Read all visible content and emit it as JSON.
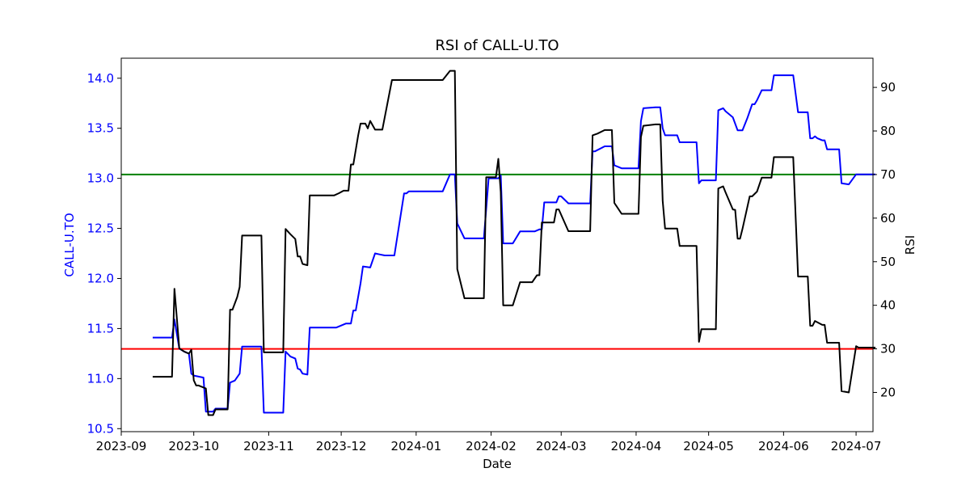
{
  "chart_data": {
    "type": "line",
    "title": "RSI of CALL-U.TO",
    "xlabel": "Date",
    "ylabel_left": "CALL-U.TO",
    "ylabel_right": "RSI",
    "ylim_left": [
      10.47,
      14.2
    ],
    "ylim_right": [
      11.0,
      96.7
    ],
    "xlim": [
      "2023-09-01",
      "2024-07-08"
    ],
    "x_ticks": [
      "2023-09",
      "2023-10",
      "2023-11",
      "2023-12",
      "2024-01",
      "2024-02",
      "2024-03",
      "2024-04",
      "2024-05",
      "2024-06",
      "2024-07"
    ],
    "y_ticks_left": [
      "10.5",
      "11.0",
      "11.5",
      "12.0",
      "12.5",
      "13.0",
      "13.5",
      "14.0"
    ],
    "y_ticks_right": [
      "20",
      "30",
      "40",
      "50",
      "60",
      "70",
      "80",
      "90"
    ],
    "hlines": [
      {
        "axis": "right",
        "value": 70,
        "color": "#008000"
      },
      {
        "axis": "right",
        "value": 30,
        "color": "#ff0000"
      }
    ],
    "series": [
      {
        "axis": "left",
        "color": "#0000ff",
        "points": [
          [
            "2023-09-14",
            11.41
          ],
          [
            "2023-09-22",
            11.41
          ],
          [
            "2023-09-23",
            11.59
          ],
          [
            "2023-09-25",
            11.3
          ],
          [
            "2023-09-27",
            11.27
          ],
          [
            "2023-09-29",
            11.25
          ],
          [
            "2023-09-30",
            11.05
          ],
          [
            "2023-10-01",
            11.03
          ],
          [
            "2023-10-05",
            11.01
          ],
          [
            "2023-10-06",
            10.67
          ],
          [
            "2023-10-09",
            10.67
          ],
          [
            "2023-10-10",
            10.7
          ],
          [
            "2023-10-15",
            10.7
          ],
          [
            "2023-10-16",
            10.96
          ],
          [
            "2023-10-18",
            10.98
          ],
          [
            "2023-10-20",
            11.05
          ],
          [
            "2023-10-21",
            11.32
          ],
          [
            "2023-10-29",
            11.32
          ],
          [
            "2023-10-30",
            10.66
          ],
          [
            "2023-11-07",
            10.66
          ],
          [
            "2023-11-08",
            11.27
          ],
          [
            "2023-11-10",
            11.22
          ],
          [
            "2023-11-12",
            11.2
          ],
          [
            "2023-11-13",
            11.1
          ],
          [
            "2023-11-14",
            11.09
          ],
          [
            "2023-11-15",
            11.05
          ],
          [
            "2023-11-17",
            11.04
          ],
          [
            "2023-11-18",
            11.51
          ],
          [
            "2023-11-29",
            11.51
          ],
          [
            "2023-12-01",
            11.53
          ],
          [
            "2023-12-03",
            11.55
          ],
          [
            "2023-12-05",
            11.55
          ],
          [
            "2023-12-06",
            11.68
          ],
          [
            "2023-12-07",
            11.68
          ],
          [
            "2023-12-09",
            11.95
          ],
          [
            "2023-12-10",
            12.12
          ],
          [
            "2023-12-13",
            12.11
          ],
          [
            "2023-12-15",
            12.25
          ],
          [
            "2023-12-17",
            12.24
          ],
          [
            "2023-12-19",
            12.23
          ],
          [
            "2023-12-23",
            12.23
          ],
          [
            "2023-12-27",
            12.85
          ],
          [
            "2023-12-28",
            12.85
          ],
          [
            "2023-12-29",
            12.87
          ],
          [
            "2024-01-12",
            12.87
          ],
          [
            "2024-01-15",
            13.04
          ],
          [
            "2024-01-17",
            13.04
          ],
          [
            "2024-01-18",
            12.55
          ],
          [
            "2024-01-21",
            12.4
          ],
          [
            "2024-01-29",
            12.4
          ],
          [
            "2024-01-31",
            13.0
          ],
          [
            "2024-02-04",
            13.0
          ],
          [
            "2024-02-05",
            13.03
          ],
          [
            "2024-02-06",
            12.35
          ],
          [
            "2024-02-10",
            12.35
          ],
          [
            "2024-02-13",
            12.47
          ],
          [
            "2024-02-19",
            12.47
          ],
          [
            "2024-02-21",
            12.49
          ],
          [
            "2024-02-22",
            12.49
          ],
          [
            "2024-02-23",
            12.76
          ],
          [
            "2024-02-28",
            12.76
          ],
          [
            "2024-02-29",
            12.82
          ],
          [
            "2024-03-01",
            12.82
          ],
          [
            "2024-03-04",
            12.75
          ],
          [
            "2024-03-13",
            12.75
          ],
          [
            "2024-03-14",
            13.27
          ],
          [
            "2024-03-15",
            13.27
          ],
          [
            "2024-03-19",
            13.32
          ],
          [
            "2024-03-22",
            13.32
          ],
          [
            "2024-03-23",
            13.13
          ],
          [
            "2024-03-26",
            13.1
          ],
          [
            "2024-04-02",
            13.1
          ],
          [
            "2024-04-03",
            13.57
          ],
          [
            "2024-04-04",
            13.7
          ],
          [
            "2024-04-09",
            13.71
          ],
          [
            "2024-04-11",
            13.71
          ],
          [
            "2024-04-12",
            13.5
          ],
          [
            "2024-04-13",
            13.43
          ],
          [
            "2024-04-18",
            13.43
          ],
          [
            "2024-04-19",
            13.36
          ],
          [
            "2024-04-26",
            13.36
          ],
          [
            "2024-04-27",
            12.95
          ],
          [
            "2024-04-28",
            12.98
          ],
          [
            "2024-05-04",
            12.98
          ],
          [
            "2024-05-05",
            13.68
          ],
          [
            "2024-05-07",
            13.7
          ],
          [
            "2024-05-08",
            13.67
          ],
          [
            "2024-05-10",
            13.63
          ],
          [
            "2024-05-11",
            13.61
          ],
          [
            "2024-05-13",
            13.48
          ],
          [
            "2024-05-14",
            13.48
          ],
          [
            "2024-05-15",
            13.48
          ],
          [
            "2024-05-17",
            13.6
          ],
          [
            "2024-05-19",
            13.74
          ],
          [
            "2024-05-20",
            13.74
          ],
          [
            "2024-05-21",
            13.78
          ],
          [
            "2024-05-23",
            13.88
          ],
          [
            "2024-05-27",
            13.88
          ],
          [
            "2024-05-28",
            14.03
          ],
          [
            "2024-06-05",
            14.03
          ],
          [
            "2024-06-07",
            13.66
          ],
          [
            "2024-06-11",
            13.66
          ],
          [
            "2024-06-12",
            13.4
          ],
          [
            "2024-06-13",
            13.4
          ],
          [
            "2024-06-14",
            13.42
          ],
          [
            "2024-06-15",
            13.4
          ],
          [
            "2024-06-17",
            13.38
          ],
          [
            "2024-06-18",
            13.38
          ],
          [
            "2024-06-19",
            13.29
          ],
          [
            "2024-06-24",
            13.29
          ],
          [
            "2024-06-25",
            12.95
          ],
          [
            "2024-06-28",
            12.94
          ],
          [
            "2024-07-01",
            13.04
          ],
          [
            "2024-07-09",
            13.04
          ]
        ]
      },
      {
        "axis": "right",
        "color": "#000000",
        "points": [
          [
            "2023-09-14",
            23.6
          ],
          [
            "2023-09-22",
            23.6
          ],
          [
            "2023-09-23",
            43.8
          ],
          [
            "2023-09-24",
            37.0
          ],
          [
            "2023-09-25",
            30.1
          ],
          [
            "2023-09-27",
            29.4
          ],
          [
            "2023-09-29",
            28.9
          ],
          [
            "2023-09-30",
            29.8
          ],
          [
            "2023-10-01",
            22.8
          ],
          [
            "2023-10-02",
            21.6
          ],
          [
            "2023-10-03",
            21.6
          ],
          [
            "2023-10-06",
            20.9
          ],
          [
            "2023-10-07",
            14.8
          ],
          [
            "2023-10-09",
            14.8
          ],
          [
            "2023-10-10",
            16.1
          ],
          [
            "2023-10-15",
            16.1
          ],
          [
            "2023-10-16",
            39.0
          ],
          [
            "2023-10-17",
            39.0
          ],
          [
            "2023-10-19",
            41.9
          ],
          [
            "2023-10-20",
            44.2
          ],
          [
            "2023-10-21",
            56.0
          ],
          [
            "2023-10-29",
            56.0
          ],
          [
            "2023-10-30",
            29.2
          ],
          [
            "2023-11-07",
            29.2
          ],
          [
            "2023-11-08",
            57.5
          ],
          [
            "2023-11-10",
            56.3
          ],
          [
            "2023-11-12",
            55.2
          ],
          [
            "2023-11-13",
            51.2
          ],
          [
            "2023-11-14",
            51.2
          ],
          [
            "2023-11-15",
            49.5
          ],
          [
            "2023-11-17",
            49.2
          ],
          [
            "2023-11-18",
            65.2
          ],
          [
            "2023-11-28",
            65.2
          ],
          [
            "2023-11-30",
            65.7
          ],
          [
            "2023-12-02",
            66.3
          ],
          [
            "2023-12-04",
            66.3
          ],
          [
            "2023-12-05",
            72.3
          ],
          [
            "2023-12-06",
            72.3
          ],
          [
            "2023-12-08",
            79.0
          ],
          [
            "2023-12-09",
            81.7
          ],
          [
            "2023-12-11",
            81.7
          ],
          [
            "2023-12-12",
            80.6
          ],
          [
            "2023-12-13",
            82.3
          ],
          [
            "2023-12-15",
            80.3
          ],
          [
            "2023-12-18",
            80.3
          ],
          [
            "2023-12-22",
            91.7
          ],
          [
            "2023-12-23",
            91.7
          ],
          [
            "2024-01-12",
            91.7
          ],
          [
            "2024-01-15",
            93.8
          ],
          [
            "2024-01-17",
            93.8
          ],
          [
            "2024-01-18",
            48.3
          ],
          [
            "2024-01-21",
            41.6
          ],
          [
            "2024-01-29",
            41.6
          ],
          [
            "2024-01-30",
            69.4
          ],
          [
            "2024-02-03",
            69.4
          ],
          [
            "2024-02-04",
            73.6
          ],
          [
            "2024-02-05",
            66.0
          ],
          [
            "2024-02-06",
            40.0
          ],
          [
            "2024-02-10",
            40.0
          ],
          [
            "2024-02-13",
            45.3
          ],
          [
            "2024-02-18",
            45.3
          ],
          [
            "2024-02-20",
            46.9
          ],
          [
            "2024-02-21",
            46.9
          ],
          [
            "2024-02-22",
            59.0
          ],
          [
            "2024-02-27",
            59.0
          ],
          [
            "2024-02-28",
            62.0
          ],
          [
            "2024-02-29",
            62.0
          ],
          [
            "2024-03-04",
            57.0
          ],
          [
            "2024-03-13",
            57.0
          ],
          [
            "2024-03-14",
            79.0
          ],
          [
            "2024-03-16",
            79.4
          ],
          [
            "2024-03-19",
            80.2
          ],
          [
            "2024-03-22",
            80.2
          ],
          [
            "2024-03-23",
            63.5
          ],
          [
            "2024-03-26",
            61.0
          ],
          [
            "2024-04-02",
            61.0
          ],
          [
            "2024-04-03",
            78.6
          ],
          [
            "2024-04-04",
            81.2
          ],
          [
            "2024-04-09",
            81.5
          ],
          [
            "2024-04-11",
            81.5
          ],
          [
            "2024-04-12",
            64.0
          ],
          [
            "2024-04-13",
            57.6
          ],
          [
            "2024-04-18",
            57.6
          ],
          [
            "2024-04-19",
            53.6
          ],
          [
            "2024-04-26",
            53.6
          ],
          [
            "2024-04-27",
            31.6
          ],
          [
            "2024-04-28",
            34.5
          ],
          [
            "2024-05-04",
            34.5
          ],
          [
            "2024-05-05",
            66.8
          ],
          [
            "2024-05-07",
            67.3
          ],
          [
            "2024-05-08",
            65.9
          ],
          [
            "2024-05-11",
            62.0
          ],
          [
            "2024-05-12",
            61.9
          ],
          [
            "2024-05-13",
            55.3
          ],
          [
            "2024-05-14",
            55.3
          ],
          [
            "2024-05-15",
            57.5
          ],
          [
            "2024-05-18",
            65.0
          ],
          [
            "2024-05-19",
            65.0
          ],
          [
            "2024-05-21",
            66.1
          ],
          [
            "2024-05-23",
            69.3
          ],
          [
            "2024-05-27",
            69.3
          ],
          [
            "2024-05-28",
            74.0
          ],
          [
            "2024-06-05",
            74.0
          ],
          [
            "2024-06-07",
            46.6
          ],
          [
            "2024-06-11",
            46.6
          ],
          [
            "2024-06-12",
            35.3
          ],
          [
            "2024-06-13",
            35.3
          ],
          [
            "2024-06-14",
            36.4
          ],
          [
            "2024-06-17",
            35.5
          ],
          [
            "2024-06-18",
            35.5
          ],
          [
            "2024-06-19",
            31.4
          ],
          [
            "2024-06-24",
            31.4
          ],
          [
            "2024-06-25",
            20.3
          ],
          [
            "2024-06-28",
            20.0
          ],
          [
            "2024-07-01",
            30.6
          ],
          [
            "2024-07-02",
            30.3
          ],
          [
            "2024-07-09",
            30.3
          ]
        ]
      }
    ]
  }
}
